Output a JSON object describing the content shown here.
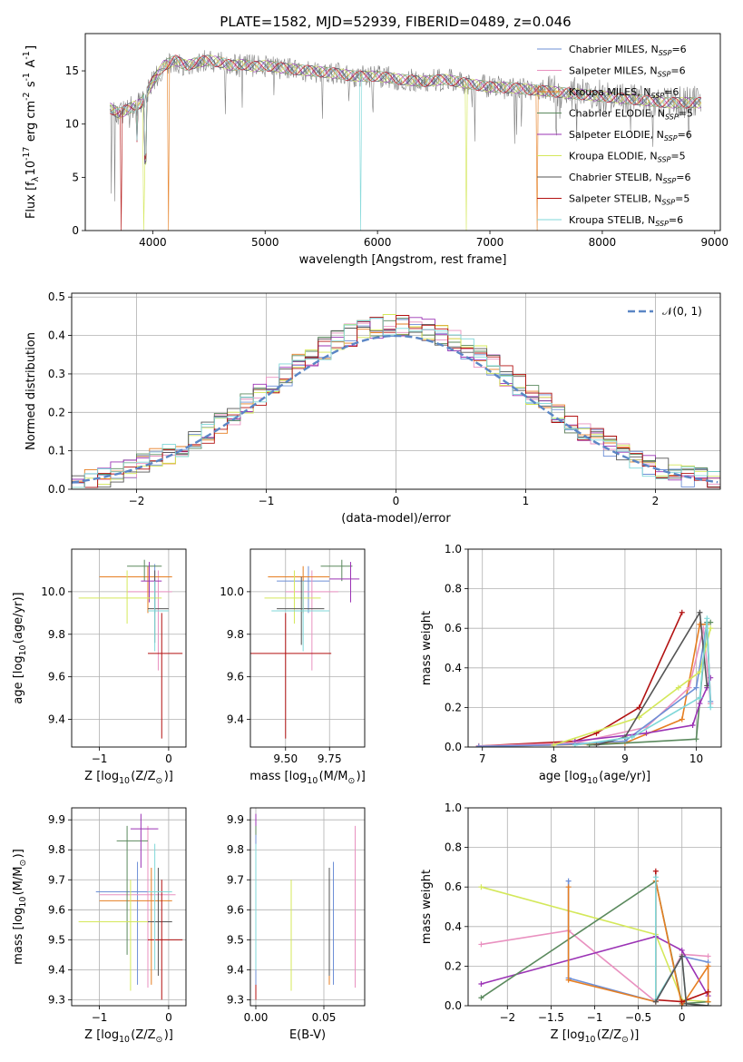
{
  "figure_title": "PLATE=1582, MJD=52939, FIBERID=0489, z=0.046",
  "colors": {
    "Chabrier MILES": "#6d8fd6",
    "Salpeter MILES": "#e991c0",
    "Kroupa MILES": "#e67e22",
    "Chabrier ELODIE": "#5b8a5e",
    "Salpeter ELODIE": "#9b33b5",
    "Kroupa ELODIE": "#d4e85a",
    "Chabrier STELIB": "#555555",
    "Salpeter STELIB": "#b31212",
    "Kroupa STELIB": "#7fd7d8",
    "data": "#808080"
  },
  "chart_data": [
    {
      "id": "spectrum",
      "type": "line",
      "xlabel": "wavelength [Angstrom, rest frame]",
      "ylabel": "Flux [f$_\\lambda$10$^{-17}$ erg cm$^{-2}$ s$^{-1}$ A$^{-1}$]",
      "xlim": [
        3400,
        9050
      ],
      "ylim": [
        0,
        18.5
      ],
      "xticks": [
        4000,
        5000,
        6000,
        7000,
        8000,
        9000
      ],
      "yticks": [
        0,
        5,
        10,
        15
      ],
      "grid": false,
      "legend_position": "upper right",
      "data_continuum": {
        "x": [
          3620,
          3700,
          3800,
          3900,
          4000,
          4100,
          4200,
          4300,
          4400,
          4500,
          4600,
          4700,
          4800,
          4900,
          5000,
          5200,
          5400,
          5600,
          5800,
          6000,
          6200,
          6400,
          6600,
          6800,
          7000,
          7200,
          7400,
          7600,
          7800,
          8000,
          8200,
          8400,
          8600,
          8800,
          8880
        ],
        "y": [
          11.5,
          11,
          11.5,
          12,
          14,
          15.5,
          16,
          15.5,
          15.8,
          16,
          15.8,
          15.5,
          15.6,
          15.4,
          15.5,
          15.2,
          15,
          14.8,
          14.5,
          14.5,
          14.2,
          14,
          14.2,
          13.8,
          13.5,
          13.4,
          13.2,
          13,
          12.8,
          12.6,
          12.4,
          12.2,
          12,
          12,
          12
        ]
      },
      "legend": [
        {
          "name": "Chabrier MILES",
          "n_ssp": 6
        },
        {
          "name": "Salpeter MILES",
          "n_ssp": 6
        },
        {
          "name": "Kroupa MILES",
          "n_ssp": 6
        },
        {
          "name": "Chabrier ELODIE",
          "n_ssp": 5
        },
        {
          "name": "Salpeter ELODIE",
          "n_ssp": 6
        },
        {
          "name": "Kroupa ELODIE",
          "n_ssp": 5
        },
        {
          "name": "Chabrier STELIB",
          "n_ssp": 6
        },
        {
          "name": "Salpeter STELIB",
          "n_ssp": 5
        },
        {
          "name": "Kroupa STELIB",
          "n_ssp": 6
        }
      ]
    },
    {
      "id": "residuals",
      "type": "bar",
      "xlabel": "(data-model)/error",
      "ylabel": "Normed distribution",
      "xlim": [
        -2.5,
        2.5
      ],
      "ylim": [
        0,
        0.51
      ],
      "xticks": [
        -2,
        -1,
        0,
        1,
        2
      ],
      "yticks": [
        0.0,
        0.1,
        0.2,
        0.3,
        0.4,
        0.5
      ],
      "grid": true,
      "legend": [
        {
          "name": "𝒩(0, 1)"
        }
      ],
      "legend_position": "upper right",
      "bin_width": 0.1
    },
    {
      "id": "age_vs_Z",
      "type": "scatter",
      "xlabel": "Z [log$_{10}$(Z/Z$_\\odot$)]",
      "ylabel": "age  [log$_{10}$(age/yr)]",
      "xlim": [
        -1.4,
        0.25
      ],
      "ylim": [
        9.27,
        10.2
      ],
      "xticks": [
        -1,
        0
      ],
      "yticks": [
        9.4,
        9.6,
        9.8,
        10.0
      ],
      "grid": true
    },
    {
      "id": "age_vs_mass",
      "type": "scatter",
      "xlabel": "mass [log$_{10}$(M/M$_\\odot$)]",
      "xlim": [
        9.3,
        9.95
      ],
      "ylim": [
        9.27,
        10.2
      ],
      "xticks": [
        9.5,
        9.75
      ],
      "xtick_labels": [
        "9.50",
        "9.75"
      ],
      "yticks": [
        9.4,
        9.6,
        9.8,
        10.0
      ],
      "grid": true
    },
    {
      "id": "weight_vs_age",
      "type": "line",
      "xlabel": "age  [log$_{10}$(age/yr)]",
      "ylabel": "mass weight",
      "xlim": [
        6.8,
        10.35
      ],
      "ylim": [
        0,
        1.0
      ],
      "xticks": [
        7,
        8,
        9,
        10
      ],
      "yticks": [
        0.0,
        0.2,
        0.4,
        0.6,
        0.8,
        1.0
      ],
      "grid": true,
      "series": [
        {
          "key": "Salpeter STELIB",
          "x": [
            6.95,
            8.3,
            8.6,
            9.2,
            9.8
          ],
          "y": [
            0.005,
            0.03,
            0.07,
            0.2,
            0.68
          ]
        },
        {
          "key": "Kroupa MILES",
          "x": [
            6.95,
            8.0,
            9.0,
            9.8,
            10.05,
            10.15,
            10.2
          ],
          "y": [
            0.003,
            0.01,
            0.02,
            0.14,
            0.62,
            0.62,
            0.22
          ]
        },
        {
          "key": "Salpeter MILES",
          "x": [
            6.95,
            8.3,
            9.3,
            9.9,
            10.1,
            10.2
          ],
          "y": [
            0.005,
            0.02,
            0.1,
            0.3,
            0.6,
            0.22
          ]
        },
        {
          "key": "Chabrier MILES",
          "x": [
            6.95,
            8.0,
            9.0,
            10.0,
            10.15,
            10.2
          ],
          "y": [
            0.003,
            0.01,
            0.03,
            0.3,
            0.63,
            0.23
          ]
        },
        {
          "key": "Chabrier ELODIE",
          "x": [
            8.5,
            10.0,
            10.15,
            10.2
          ],
          "y": [
            0.01,
            0.04,
            0.63,
            0.63
          ]
        },
        {
          "key": "Salpeter ELODIE",
          "x": [
            8.3,
            9.3,
            9.95,
            10.05,
            10.15,
            10.2
          ],
          "y": [
            0.03,
            0.07,
            0.11,
            0.22,
            0.3,
            0.35
          ]
        },
        {
          "key": "Kroupa ELODIE",
          "x": [
            8.0,
            9.2,
            9.75,
            10.05,
            10.2
          ],
          "y": [
            0.01,
            0.15,
            0.3,
            0.38,
            0.6
          ]
        },
        {
          "key": "Chabrier STELIB",
          "x": [
            8.6,
            9.0,
            10.05,
            10.15
          ],
          "y": [
            0.01,
            0.05,
            0.68,
            0.31
          ]
        },
        {
          "key": "Kroupa STELIB",
          "x": [
            8.3,
            9.1,
            10.05,
            10.15,
            10.2
          ],
          "y": [
            0.01,
            0.05,
            0.25,
            0.65,
            0.2
          ]
        }
      ]
    },
    {
      "id": "mass_vs_Z",
      "type": "scatter",
      "xlabel": "Z [log$_{10}$(Z/Z$_\\odot$)]",
      "ylabel": "mass [log$_{10}$(M/M$_\\odot$)]",
      "xlim": [
        -1.4,
        0.25
      ],
      "ylim": [
        9.28,
        9.94
      ],
      "xticks": [
        -1,
        0
      ],
      "yticks": [
        9.3,
        9.4,
        9.5,
        9.6,
        9.7,
        9.8,
        9.9
      ],
      "grid": true
    },
    {
      "id": "mass_vs_ebv",
      "type": "scatter",
      "xlabel": "E(B-V)",
      "xlim": [
        -0.004,
        0.08
      ],
      "ylim": [
        9.28,
        9.94
      ],
      "xticks": [
        0.0,
        0.05
      ],
      "xtick_labels": [
        "0.00",
        "0.05"
      ],
      "yticks": [
        9.3,
        9.4,
        9.5,
        9.6,
        9.7,
        9.8,
        9.9
      ],
      "grid": true,
      "points": [
        {
          "key": "Salpeter ELODIE",
          "x": 0.0,
          "y": 9.86,
          "ylo": 9.74,
          "yhi": 9.92
        },
        {
          "key": "Salpeter STELIB",
          "x": 0.0,
          "y": 9.5,
          "ylo": 9.3,
          "yhi": 9.7
        },
        {
          "key": "Chabrier ELODIE",
          "x": 0.0,
          "y": 9.83,
          "ylo": 9.45,
          "yhi": 9.88
        },
        {
          "key": "Chabrier MILES",
          "x": 0.0,
          "y": 9.66,
          "ylo": 9.35,
          "yhi": 9.85
        },
        {
          "key": "Kroupa STELIB",
          "x": 0.0,
          "y": 9.66,
          "ylo": 9.4,
          "yhi": 9.82
        },
        {
          "key": "Kroupa ELODIE",
          "x": 0.026,
          "y": 9.56,
          "ylo": 9.33,
          "yhi": 9.7
        },
        {
          "key": "Kroupa MILES",
          "x": 0.054,
          "y": 9.63,
          "ylo": 9.35,
          "yhi": 9.74
        },
        {
          "key": "Chabrier STELIB",
          "x": 0.054,
          "y": 9.56,
          "ylo": 9.38,
          "yhi": 9.74
        },
        {
          "key": "Chabrier MILES",
          "x": 0.057,
          "y": 9.66,
          "ylo": 9.35,
          "yhi": 9.76
        },
        {
          "key": "Salpeter MILES",
          "x": 0.073,
          "y": 9.65,
          "ylo": 9.34,
          "yhi": 9.88
        }
      ]
    },
    {
      "id": "weight_vs_Z",
      "type": "line",
      "xlabel": "Z [log$_{10}$(Z/Z$_\\odot$)]",
      "ylabel": "mass weight",
      "xlim": [
        -2.45,
        0.45
      ],
      "ylim": [
        0,
        1.0
      ],
      "xticks": [
        -2.0,
        -1.5,
        -1.0,
        -0.5,
        0.0
      ],
      "yticks": [
        0.0,
        0.2,
        0.4,
        0.6,
        0.8,
        1.0
      ],
      "grid": true,
      "series": [
        {
          "key": "Kroupa ELODIE",
          "x": [
            -2.3,
            -0.3,
            0.0,
            0.3
          ],
          "y": [
            0.6,
            0.36,
            0.03,
            0.02
          ]
        },
        {
          "key": "Salpeter MILES",
          "x": [
            -2.3,
            -1.3,
            -0.3,
            0.0,
            0.3
          ],
          "y": [
            0.31,
            0.38,
            0.02,
            0.26,
            0.25
          ]
        },
        {
          "key": "Salpeter ELODIE",
          "x": [
            -2.3,
            -0.3,
            0.0,
            0.3
          ],
          "y": [
            0.11,
            0.35,
            0.28,
            0.05
          ]
        },
        {
          "key": "Chabrier ELODIE",
          "x": [
            -2.3,
            -0.3,
            0.0,
            0.3
          ],
          "y": [
            0.04,
            0.63,
            0.01,
            0.02
          ]
        },
        {
          "key": "Chabrier MILES",
          "x": [
            -1.3,
            -1.3,
            -0.3,
            0.0,
            0.3
          ],
          "y": [
            0.63,
            0.14,
            0.02,
            0.25,
            0.22
          ]
        },
        {
          "key": "Kroupa MILES",
          "x": [
            -1.3,
            -1.3,
            -0.3,
            -0.3,
            0.0,
            0.3,
            0.3
          ],
          "y": [
            0.6,
            0.13,
            0.02,
            0.63,
            0.0,
            0.2,
            0.02
          ]
        },
        {
          "key": "Salpeter STELIB",
          "x": [
            -0.3,
            -0.3,
            0.0,
            0.3
          ],
          "y": [
            0.68,
            0.03,
            0.02,
            0.07
          ]
        },
        {
          "key": "Kroupa STELIB",
          "x": [
            -0.3,
            -0.3,
            0.0,
            0.05,
            0.3
          ],
          "y": [
            0.65,
            0.03,
            0.25,
            0.01,
            0.0
          ]
        },
        {
          "key": "Chabrier STELIB",
          "x": [
            -0.3,
            0.0,
            0.05,
            0.3
          ],
          "y": [
            0.02,
            0.25,
            0.01,
            0.0
          ]
        }
      ]
    }
  ]
}
